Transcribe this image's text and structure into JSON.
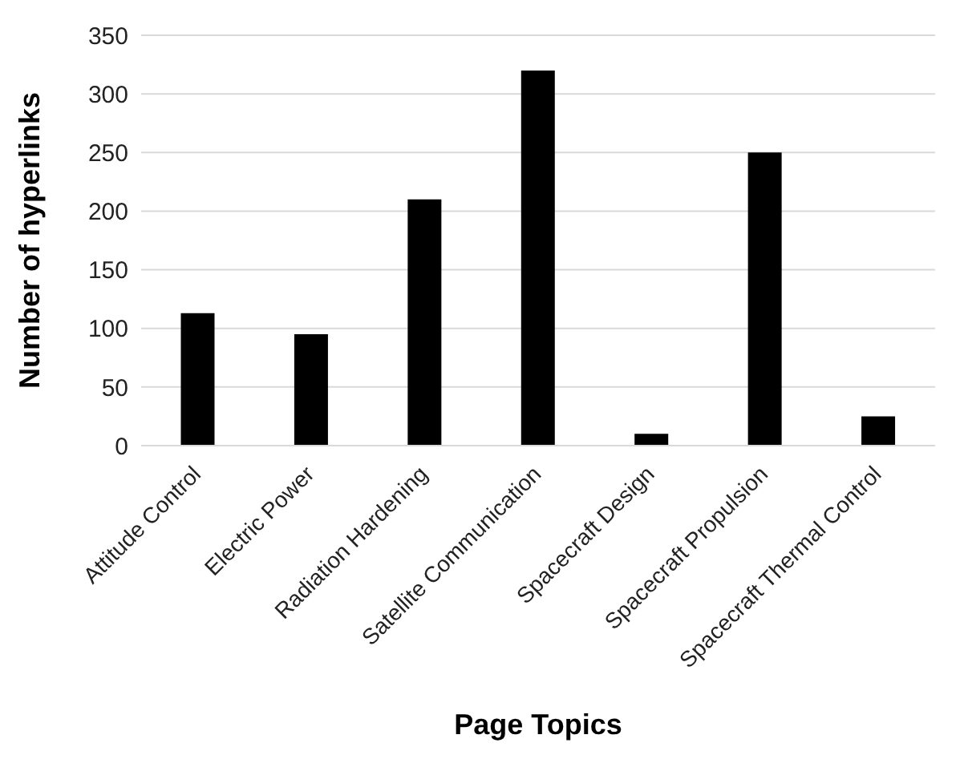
{
  "chart_data": {
    "type": "bar",
    "xlabel": "Page Topics",
    "ylabel": "Number of hyperlinks",
    "categories": [
      "Attitude Control",
      "Electric Power",
      "Radiation Hardening",
      "Satellite Communication",
      "Spacecraft Design",
      "Spacecraft Propulsion",
      "Spacecraft Thermal Control"
    ],
    "values": [
      113,
      95,
      210,
      320,
      10,
      250,
      25
    ],
    "color": "#000000",
    "ylim": [
      0,
      350
    ],
    "yticks": [
      0,
      50,
      100,
      150,
      200,
      250,
      300,
      350
    ],
    "grid": "y"
  }
}
